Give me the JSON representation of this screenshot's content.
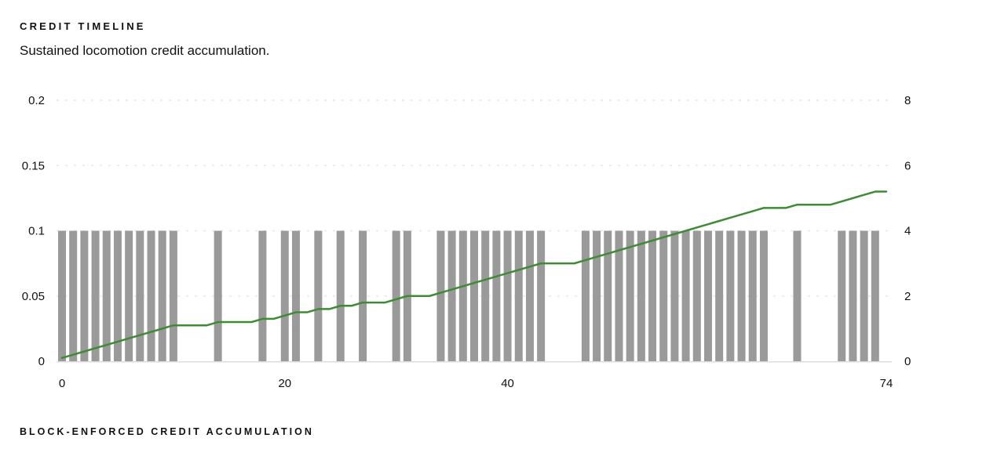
{
  "header": {
    "title": "CREDIT TIMELINE",
    "subtitle": "Sustained locomotion credit accumulation."
  },
  "footer": {
    "label": "BLOCK-ENFORCED CREDIT ACCUMULATION"
  },
  "colors": {
    "bar": "#9a9a9a",
    "line": "#3f8b35",
    "grid": "#ececec",
    "baseline": "#dcdcdc",
    "text": "#111111"
  },
  "chart_data": {
    "type": "bar",
    "title": "CREDIT TIMELINE",
    "subtitle": "Sustained locomotion credit accumulation.",
    "caption": "BLOCK-ENFORCED CREDIT ACCUMULATION",
    "legend": "none",
    "grid": "dotted horizontal gridlines",
    "x_range": [
      0,
      74
    ],
    "x_tick_values": [
      0,
      20,
      40,
      74
    ],
    "x_tick_labels": [
      "0",
      "20",
      "40",
      "74"
    ],
    "left_axis": {
      "range": [
        0,
        0.2
      ],
      "tick_values": [
        0,
        0.05,
        0.1,
        0.15,
        0.2
      ],
      "tick_labels": [
        "0",
        "0.05",
        "0.1",
        "0.15",
        "0.2"
      ],
      "series": "block bars"
    },
    "right_axis": {
      "range": [
        0,
        8
      ],
      "tick_values": [
        0,
        2,
        4,
        6,
        8
      ],
      "tick_labels": [
        "0",
        "2",
        "4",
        "6",
        "8"
      ],
      "series": "cumulative credit line"
    },
    "bars": {
      "name": "block-enforced credit blocks",
      "axis": "left",
      "value_each": 0.1,
      "indices": [
        0,
        1,
        2,
        3,
        4,
        5,
        6,
        7,
        8,
        9,
        10,
        14,
        18,
        20,
        21,
        23,
        25,
        27,
        30,
        31,
        34,
        35,
        36,
        37,
        38,
        39,
        40,
        41,
        42,
        43,
        47,
        48,
        49,
        50,
        51,
        52,
        53,
        54,
        55,
        56,
        57,
        58,
        59,
        60,
        61,
        62,
        63,
        66,
        70,
        71,
        72,
        73
      ]
    },
    "line": {
      "name": "sustained credit accumulation",
      "axis": "right",
      "x_start": 0,
      "x_step": 1,
      "values": [
        0.1,
        0.2,
        0.3,
        0.4,
        0.5,
        0.6,
        0.7,
        0.8,
        0.9,
        1.0,
        1.1,
        1.1,
        1.1,
        1.1,
        1.2,
        1.2,
        1.2,
        1.2,
        1.3,
        1.3,
        1.4,
        1.5,
        1.5,
        1.6,
        1.6,
        1.7,
        1.7,
        1.8,
        1.8,
        1.8,
        1.9,
        2.0,
        2.0,
        2.0,
        2.1,
        2.2,
        2.3,
        2.4,
        2.5,
        2.6,
        2.7,
        2.8,
        2.9,
        3.0,
        3.0,
        3.0,
        3.0,
        3.1,
        3.2,
        3.3,
        3.4,
        3.5,
        3.6,
        3.7,
        3.8,
        3.9,
        4.0,
        4.1,
        4.2,
        4.3,
        4.4,
        4.5,
        4.6,
        4.7,
        4.7,
        4.7,
        4.8,
        4.8,
        4.8,
        4.8,
        4.9,
        5.0,
        5.1,
        5.2,
        5.2
      ]
    }
  }
}
